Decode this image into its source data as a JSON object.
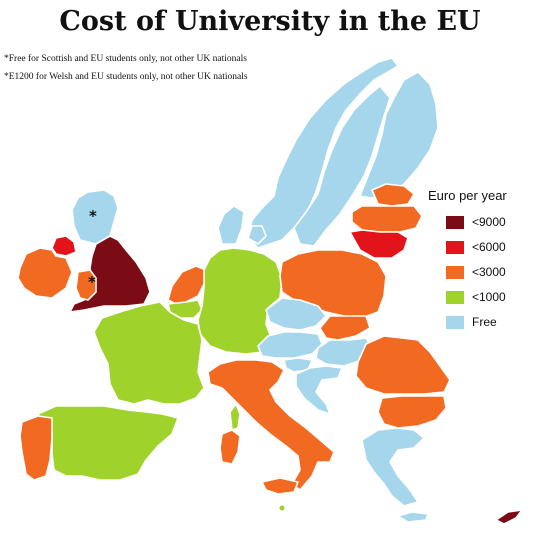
{
  "title": "Cost of University in the EU",
  "notes": [
    "*Free for Scottish and EU students only, not other UK nationals",
    "*E1200 for Welsh and EU students only, not other UK nationals"
  ],
  "legend": {
    "title": "Euro per year",
    "items": [
      {
        "label": "<9000",
        "color": "#7b0c15"
      },
      {
        "label": "<6000",
        "color": "#e3131b"
      },
      {
        "label": "<3000",
        "color": "#f26a21"
      },
      {
        "label": "<1000",
        "color": "#9fd22a"
      },
      {
        "label": "Free",
        "color": "#a6d6ec"
      }
    ]
  },
  "marker_symbol": "*",
  "regions": [
    {
      "name": "Norway",
      "category": "Free"
    },
    {
      "name": "Sweden",
      "category": "Free"
    },
    {
      "name": "Finland",
      "category": "Free"
    },
    {
      "name": "Denmark",
      "category": "Free"
    },
    {
      "name": "Scotland",
      "category": "Free"
    },
    {
      "name": "England",
      "category": "<9000"
    },
    {
      "name": "Wales",
      "category": "<3000"
    },
    {
      "name": "Northern Ireland",
      "category": "<6000"
    },
    {
      "name": "Ireland",
      "category": "<3000"
    },
    {
      "name": "Estonia",
      "category": "<3000"
    },
    {
      "name": "Latvia",
      "category": "<3000"
    },
    {
      "name": "Lithuania",
      "category": "<6000"
    },
    {
      "name": "Netherlands",
      "category": "<3000"
    },
    {
      "name": "Belgium",
      "category": "<1000"
    },
    {
      "name": "Germany",
      "category": "<1000"
    },
    {
      "name": "Poland",
      "category": "<3000"
    },
    {
      "name": "Czech Republic",
      "category": "Free"
    },
    {
      "name": "Slovakia",
      "category": "<3000"
    },
    {
      "name": "Austria",
      "category": "Free"
    },
    {
      "name": "Hungary",
      "category": "Free"
    },
    {
      "name": "Slovenia",
      "category": "Free"
    },
    {
      "name": "Croatia",
      "category": "Free"
    },
    {
      "name": "Romania",
      "category": "<3000"
    },
    {
      "name": "Bulgaria",
      "category": "<3000"
    },
    {
      "name": "France",
      "category": "<1000"
    },
    {
      "name": "Spain",
      "category": "<1000"
    },
    {
      "name": "Portugal",
      "category": "<3000"
    },
    {
      "name": "Italy",
      "category": "<3000"
    },
    {
      "name": "Sardinia",
      "category": "<3000"
    },
    {
      "name": "Corsica",
      "category": "<1000"
    },
    {
      "name": "Greece",
      "category": "Free"
    },
    {
      "name": "Cyprus",
      "category": "<9000"
    },
    {
      "name": "Malta",
      "category": "<1000"
    }
  ]
}
